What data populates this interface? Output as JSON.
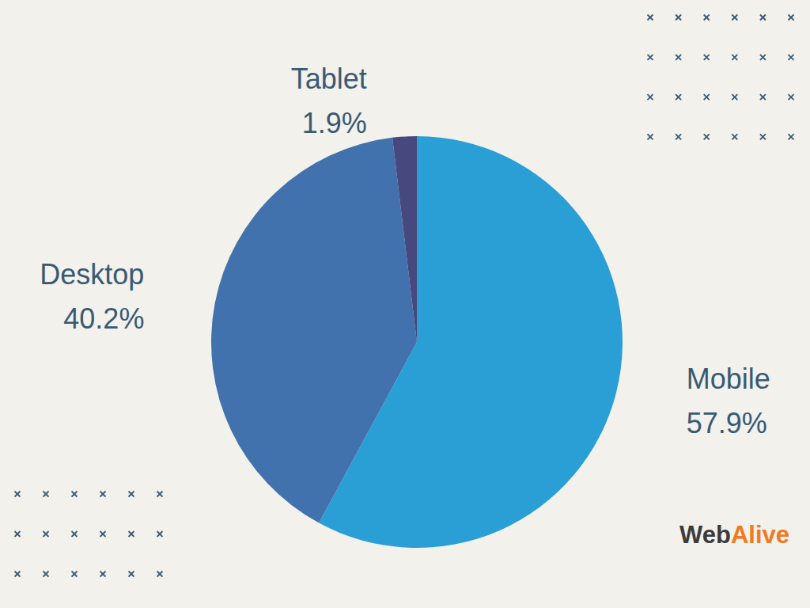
{
  "chart_data": {
    "type": "pie",
    "categories": [
      "Mobile",
      "Desktop",
      "Tablet"
    ],
    "values": [
      57.9,
      40.2,
      1.9
    ],
    "value_labels": [
      "57.9%",
      "40.2%",
      "1.9%"
    ],
    "colors": [
      "#2a9fd6",
      "#4272ad",
      "#46487e"
    ],
    "data_labels": true,
    "annotations": [
      "WebAlive"
    ]
  }
}
